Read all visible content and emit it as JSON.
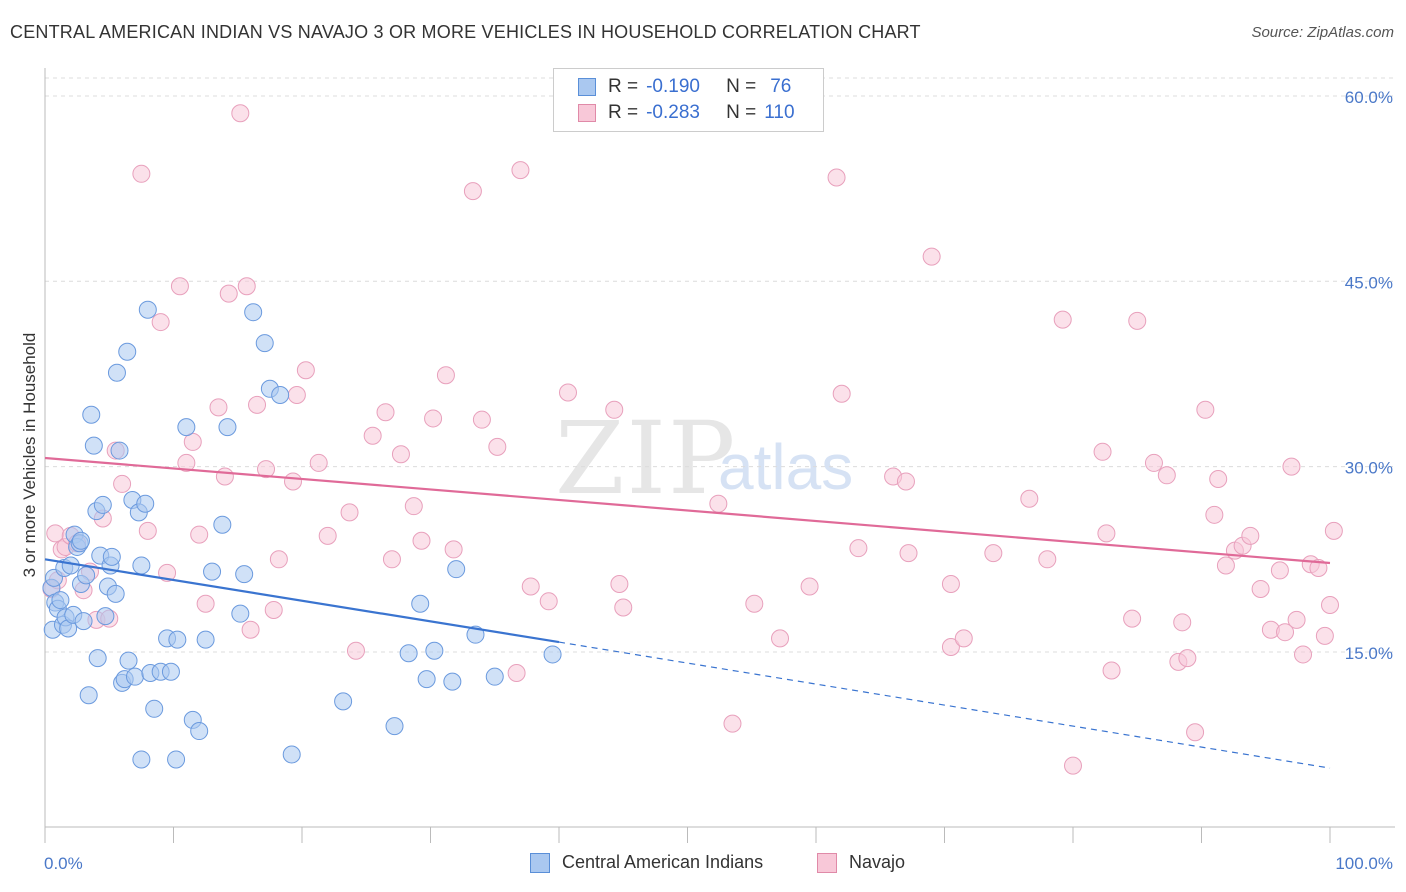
{
  "header": {
    "title": "CENTRAL AMERICAN INDIAN VS NAVAJO 3 OR MORE VEHICLES IN HOUSEHOLD CORRELATION CHART",
    "source": "Source: ZipAtlas.com"
  },
  "watermark": {
    "zip": "ZIP",
    "atlas": "atlas"
  },
  "legend": {
    "rows": [
      {
        "r_label": "R =",
        "r_value": "-0.190",
        "n_label": "N =",
        "n_value": "76",
        "color": "#aac8f0",
        "border": "#5a8fd8"
      },
      {
        "r_label": "R =",
        "r_value": "-0.283",
        "n_label": "N =",
        "n_value": "110",
        "color": "#f8c8d8",
        "border": "#e08aa8"
      }
    ]
  },
  "bottom_legend": {
    "series_a": "Central American Indians",
    "series_b": "Navajo"
  },
  "chart_data": {
    "type": "scatter",
    "title": "CENTRAL AMERICAN INDIAN VS NAVAJO 3 OR MORE VEHICLES IN HOUSEHOLD CORRELATION CHART",
    "xlabel": "",
    "ylabel": "3 or more Vehicles in Household",
    "xlim": [
      0,
      100
    ],
    "ylim": [
      0,
      62
    ],
    "x_tick_labels": [
      "0.0%",
      "100.0%"
    ],
    "y_ticks": [
      15,
      30,
      45,
      60
    ],
    "y_tick_labels": [
      "15.0%",
      "30.0%",
      "45.0%",
      "60.0%"
    ],
    "grid": true,
    "colors": {
      "blue": "#5a8fd8",
      "blue_fill": "#aac8f0",
      "pink": "#e06a98",
      "pink_fill": "#f8c8d8"
    },
    "series": [
      {
        "name": "Central American Indians",
        "color": "#5a8fd8",
        "trend": {
          "x0": 0,
          "y0": 22.5,
          "x1": 40,
          "y1": 15.8,
          "dash_to_x": 100,
          "dash_to_y": 5.6
        },
        "points": [
          [
            0.5,
            20.2
          ],
          [
            0.6,
            16.8
          ],
          [
            0.7,
            21.0
          ],
          [
            0.8,
            19.0
          ],
          [
            1.0,
            18.5
          ],
          [
            1.2,
            19.2
          ],
          [
            1.4,
            17.2
          ],
          [
            1.5,
            21.8
          ],
          [
            1.6,
            17.8
          ],
          [
            1.8,
            16.9
          ],
          [
            2.0,
            22.0
          ],
          [
            2.2,
            18.0
          ],
          [
            2.3,
            24.5
          ],
          [
            2.5,
            23.5
          ],
          [
            2.7,
            23.8
          ],
          [
            2.8,
            20.5
          ],
          [
            3.0,
            17.5
          ],
          [
            3.2,
            21.2
          ],
          [
            3.4,
            11.5
          ],
          [
            3.6,
            34.2
          ],
          [
            3.8,
            31.7
          ],
          [
            4.0,
            26.4
          ],
          [
            4.1,
            14.5
          ],
          [
            4.3,
            22.8
          ],
          [
            4.5,
            26.9
          ],
          [
            4.7,
            17.9
          ],
          [
            4.9,
            20.3
          ],
          [
            5.1,
            22.0
          ],
          [
            5.2,
            22.7
          ],
          [
            5.5,
            19.7
          ],
          [
            5.6,
            37.6
          ],
          [
            5.8,
            31.3
          ],
          [
            6.0,
            12.5
          ],
          [
            6.2,
            12.8
          ],
          [
            6.4,
            39.3
          ],
          [
            6.5,
            14.3
          ],
          [
            6.8,
            27.3
          ],
          [
            7.0,
            13.0
          ],
          [
            7.3,
            26.3
          ],
          [
            7.5,
            22.0
          ],
          [
            7.8,
            27.0
          ],
          [
            8.0,
            42.7
          ],
          [
            8.2,
            13.3
          ],
          [
            8.5,
            10.4
          ],
          [
            9.0,
            13.4
          ],
          [
            9.5,
            16.1
          ],
          [
            9.8,
            13.4
          ],
          [
            10.3,
            16.0
          ],
          [
            11.0,
            33.2
          ],
          [
            11.5,
            9.5
          ],
          [
            12.0,
            8.6
          ],
          [
            12.5,
            16.0
          ],
          [
            13.0,
            21.5
          ],
          [
            13.8,
            25.3
          ],
          [
            14.2,
            33.2
          ],
          [
            15.2,
            18.1
          ],
          [
            15.5,
            21.3
          ],
          [
            16.2,
            42.5
          ],
          [
            17.1,
            40.0
          ],
          [
            17.5,
            36.3
          ],
          [
            18.3,
            35.8
          ],
          [
            19.2,
            6.7
          ],
          [
            23.2,
            11.0
          ],
          [
            27.2,
            9.0
          ],
          [
            28.3,
            14.9
          ],
          [
            29.2,
            18.9
          ],
          [
            29.7,
            12.8
          ],
          [
            30.3,
            15.1
          ],
          [
            31.7,
            12.6
          ],
          [
            32.0,
            21.7
          ],
          [
            33.5,
            16.4
          ],
          [
            35.0,
            13.0
          ],
          [
            39.5,
            14.8
          ],
          [
            7.5,
            6.3
          ],
          [
            10.2,
            6.3
          ],
          [
            2.8,
            24.0
          ]
        ]
      },
      {
        "name": "Navajo",
        "color": "#e06a98",
        "trend": {
          "x0": 0,
          "y0": 30.7,
          "x1": 100,
          "y1": 22.2
        },
        "points": [
          [
            0.5,
            20.1
          ],
          [
            0.8,
            24.6
          ],
          [
            1.0,
            20.8
          ],
          [
            1.3,
            23.3
          ],
          [
            1.6,
            23.5
          ],
          [
            2.0,
            24.4
          ],
          [
            2.5,
            23.8
          ],
          [
            3.0,
            20.0
          ],
          [
            3.5,
            21.5
          ],
          [
            4.0,
            17.6
          ],
          [
            4.5,
            25.8
          ],
          [
            5.0,
            17.7
          ],
          [
            5.5,
            31.3
          ],
          [
            6.0,
            28.6
          ],
          [
            7.5,
            53.7
          ],
          [
            8.0,
            24.8
          ],
          [
            9.0,
            41.7
          ],
          [
            9.5,
            21.4
          ],
          [
            10.5,
            44.6
          ],
          [
            11.0,
            30.3
          ],
          [
            11.5,
            32.0
          ],
          [
            12.0,
            24.5
          ],
          [
            12.5,
            18.9
          ],
          [
            13.5,
            34.8
          ],
          [
            14.0,
            29.2
          ],
          [
            14.3,
            44.0
          ],
          [
            15.2,
            58.6
          ],
          [
            15.7,
            44.6
          ],
          [
            16.0,
            16.8
          ],
          [
            16.5,
            35.0
          ],
          [
            17.2,
            29.8
          ],
          [
            17.8,
            18.4
          ],
          [
            18.2,
            22.5
          ],
          [
            19.3,
            28.8
          ],
          [
            19.6,
            35.8
          ],
          [
            20.3,
            37.8
          ],
          [
            21.3,
            30.3
          ],
          [
            22.0,
            24.4
          ],
          [
            23.7,
            26.3
          ],
          [
            24.2,
            15.1
          ],
          [
            25.5,
            32.5
          ],
          [
            26.5,
            34.4
          ],
          [
            27.0,
            22.5
          ],
          [
            27.7,
            31.0
          ],
          [
            28.7,
            26.8
          ],
          [
            29.3,
            24.0
          ],
          [
            30.2,
            33.9
          ],
          [
            31.2,
            37.4
          ],
          [
            31.8,
            23.3
          ],
          [
            33.3,
            52.3
          ],
          [
            34.0,
            33.8
          ],
          [
            35.2,
            31.6
          ],
          [
            36.7,
            13.3
          ],
          [
            37.0,
            54.0
          ],
          [
            37.8,
            20.3
          ],
          [
            39.2,
            19.1
          ],
          [
            40.7,
            36.0
          ],
          [
            44.3,
            34.6
          ],
          [
            44.7,
            20.5
          ],
          [
            45.0,
            18.6
          ],
          [
            52.4,
            27.0
          ],
          [
            53.5,
            9.2
          ],
          [
            55.2,
            18.9
          ],
          [
            57.2,
            16.1
          ],
          [
            59.5,
            20.3
          ],
          [
            61.6,
            53.4
          ],
          [
            62.0,
            35.9
          ],
          [
            63.3,
            23.4
          ],
          [
            66.0,
            29.2
          ],
          [
            67.0,
            28.8
          ],
          [
            67.2,
            23.0
          ],
          [
            69.0,
            47.0
          ],
          [
            70.5,
            15.4
          ],
          [
            70.5,
            20.5
          ],
          [
            71.5,
            16.1
          ],
          [
            73.8,
            23.0
          ],
          [
            76.6,
            27.4
          ],
          [
            78.0,
            22.5
          ],
          [
            79.2,
            41.9
          ],
          [
            80.0,
            5.8
          ],
          [
            82.3,
            31.2
          ],
          [
            82.6,
            24.6
          ],
          [
            83.0,
            13.5
          ],
          [
            84.6,
            17.7
          ],
          [
            85.0,
            41.8
          ],
          [
            86.3,
            30.3
          ],
          [
            87.3,
            29.3
          ],
          [
            88.2,
            14.2
          ],
          [
            88.5,
            17.4
          ],
          [
            88.9,
            14.5
          ],
          [
            89.5,
            8.5
          ],
          [
            90.3,
            34.6
          ],
          [
            91.0,
            26.1
          ],
          [
            91.3,
            29.0
          ],
          [
            91.9,
            22.0
          ],
          [
            92.6,
            23.2
          ],
          [
            93.2,
            23.6
          ],
          [
            93.8,
            24.4
          ],
          [
            94.6,
            20.1
          ],
          [
            95.4,
            16.8
          ],
          [
            96.1,
            21.6
          ],
          [
            96.5,
            16.6
          ],
          [
            97.0,
            30.0
          ],
          [
            97.4,
            17.6
          ],
          [
            97.9,
            14.8
          ],
          [
            98.5,
            22.1
          ],
          [
            99.1,
            21.8
          ],
          [
            99.6,
            16.3
          ],
          [
            100.0,
            18.8
          ],
          [
            100.3,
            24.8
          ]
        ]
      }
    ]
  }
}
